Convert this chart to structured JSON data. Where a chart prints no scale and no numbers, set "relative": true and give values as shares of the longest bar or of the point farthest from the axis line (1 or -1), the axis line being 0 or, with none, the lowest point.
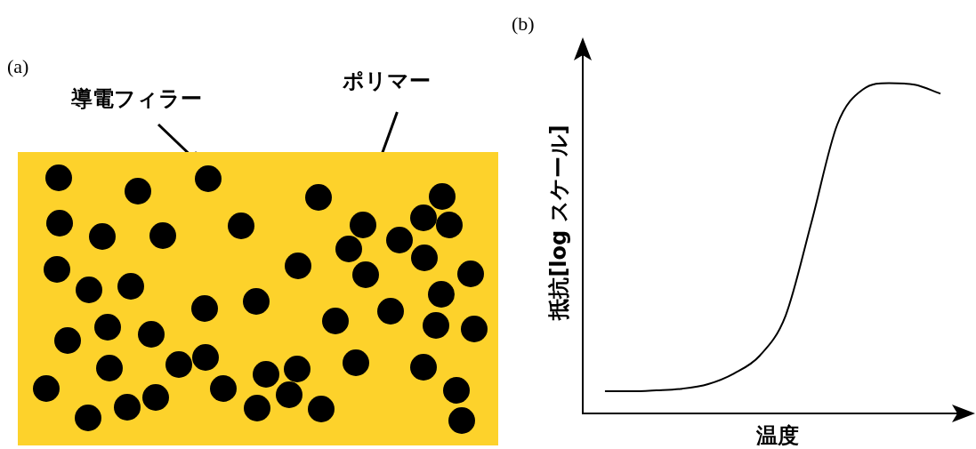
{
  "chart_data": [
    {
      "type": "other",
      "title": "(a)",
      "annotations": [
        "導電フィラー",
        "ポリマー"
      ]
    },
    {
      "type": "line",
      "title": "(b)",
      "xlabel": "温度",
      "ylabel": "抵抗[log スケール]",
      "relative": true,
      "marker": "none",
      "line_style": "solid",
      "color": "#000000",
      "categories": [
        null,
        null,
        null,
        null,
        null,
        null,
        null,
        null,
        null,
        null,
        null,
        null,
        null,
        null
      ],
      "values": [
        0.067,
        0.067,
        0.07,
        0.075,
        0.089,
        0.121,
        0.175,
        0.296,
        0.578,
        0.874,
        0.981,
        1,
        0.995,
        0.968
      ]
    }
  ]
}
